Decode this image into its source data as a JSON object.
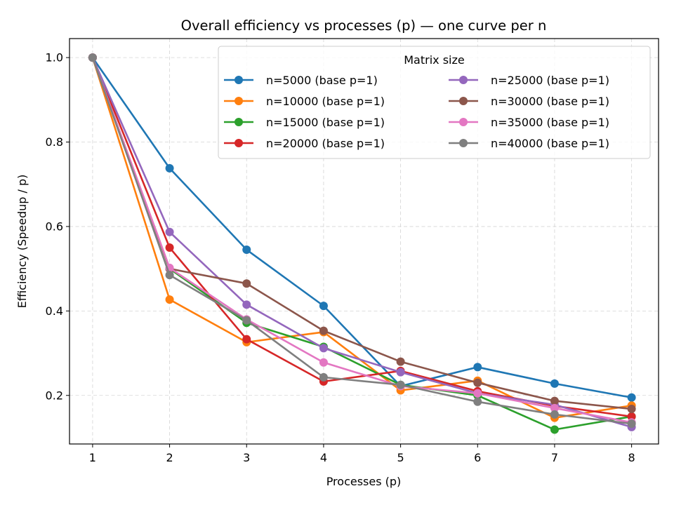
{
  "chart_data": {
    "type": "line",
    "title": "Overall efficiency vs processes (p) — one curve per n",
    "xlabel": "Processes (p)",
    "ylabel": "Efficiency (Speedup / p)",
    "x": [
      1,
      2,
      3,
      4,
      5,
      6,
      7,
      8
    ],
    "xlim": [
      0.7,
      8.35
    ],
    "ylim": [
      0.085,
      1.045
    ],
    "xticks": [
      "1",
      "2",
      "3",
      "4",
      "5",
      "6",
      "7",
      "8"
    ],
    "yticks": [
      "0.2",
      "0.4",
      "0.6",
      "0.8",
      "1.0"
    ],
    "grid": true,
    "legend": {
      "title": "Matrix size",
      "position": "top-right",
      "columns": 2
    },
    "series": [
      {
        "name": "n=5000 (base p=1)",
        "color": "#1f77b4",
        "values": [
          1.0,
          0.738,
          0.545,
          0.412,
          0.222,
          0.267,
          0.228,
          0.195
        ]
      },
      {
        "name": "n=10000 (base p=1)",
        "color": "#ff7f0e",
        "values": [
          1.0,
          0.427,
          0.326,
          0.35,
          0.212,
          0.235,
          0.147,
          0.176
        ]
      },
      {
        "name": "n=15000 (base p=1)",
        "color": "#2ca02c",
        "values": [
          1.0,
          0.5,
          0.372,
          0.315,
          0.225,
          0.2,
          0.119,
          0.15
        ]
      },
      {
        "name": "n=20000 (base p=1)",
        "color": "#d62728",
        "values": [
          1.0,
          0.55,
          0.333,
          0.233,
          0.258,
          0.21,
          0.175,
          0.15
        ]
      },
      {
        "name": "n=25000 (base p=1)",
        "color": "#9467bd",
        "values": [
          1.0,
          0.587,
          0.415,
          0.312,
          0.255,
          0.205,
          0.178,
          0.125
        ]
      },
      {
        "name": "n=30000 (base p=1)",
        "color": "#8c564b",
        "values": [
          1.0,
          0.5,
          0.465,
          0.353,
          0.28,
          0.23,
          0.187,
          0.168
        ]
      },
      {
        "name": "n=35000 (base p=1)",
        "color": "#e377c2",
        "values": [
          1.0,
          0.502,
          0.38,
          0.278,
          0.222,
          0.205,
          0.17,
          0.136
        ]
      },
      {
        "name": "n=40000 (base p=1)",
        "color": "#7f7f7f",
        "values": [
          1.0,
          0.485,
          0.378,
          0.243,
          0.225,
          0.185,
          0.155,
          0.133
        ]
      }
    ]
  }
}
